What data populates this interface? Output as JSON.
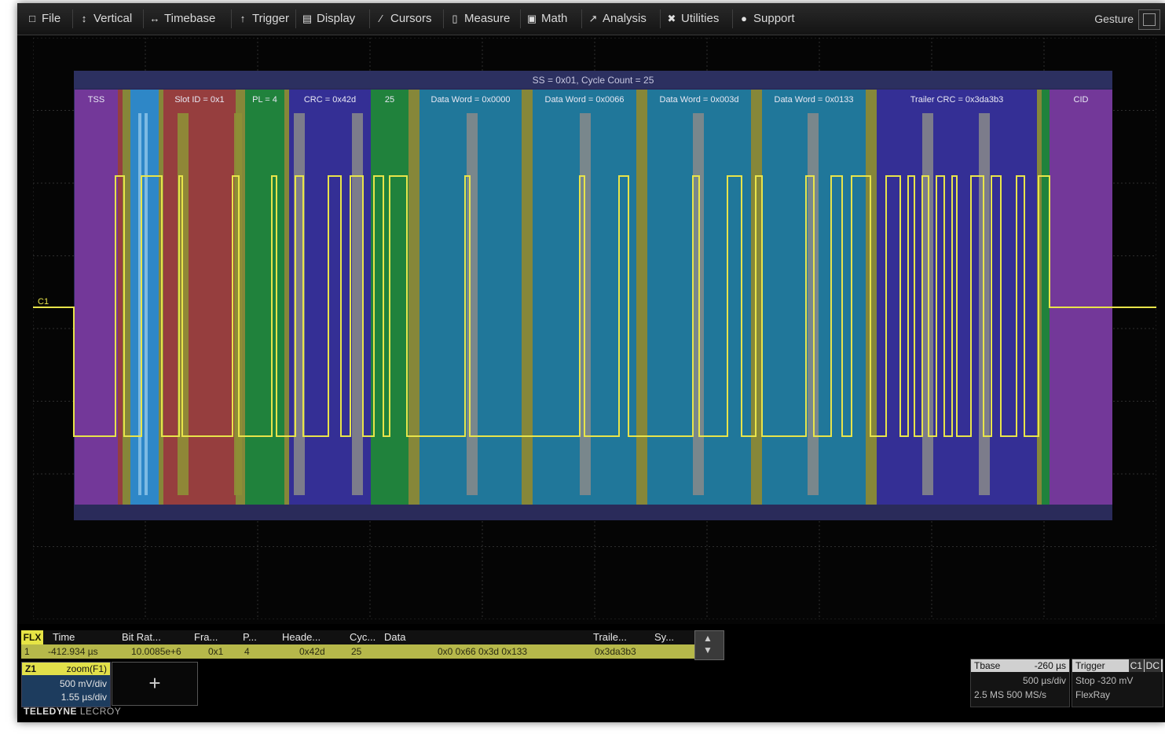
{
  "menu": [
    {
      "label": "File",
      "icon": "file-icon"
    },
    {
      "label": "Vertical",
      "icon": "vertical-icon"
    },
    {
      "label": "Timebase",
      "icon": "timebase-icon"
    },
    {
      "label": "Trigger",
      "icon": "trigger-icon"
    },
    {
      "label": "Display",
      "icon": "display-icon"
    },
    {
      "label": "Cursors",
      "icon": "cursors-icon"
    },
    {
      "label": "Measure",
      "icon": "measure-icon"
    },
    {
      "label": "Math",
      "icon": "math-icon"
    },
    {
      "label": "Analysis",
      "icon": "analysis-icon"
    },
    {
      "label": "Utilities",
      "icon": "utilities-icon"
    },
    {
      "label": "Support",
      "icon": "support-icon"
    }
  ],
  "gesture_label": "Gesture",
  "colors": {
    "trace": "#e8e44a",
    "overlay": "#2a2b5a",
    "purple": "#7a3a9e",
    "blue": "#2f8fd0",
    "red": "#a0403c",
    "green": "#1f8a3a",
    "indigo": "#35309a",
    "teal": "#1f7ea0",
    "olive": "#8e8f36",
    "gray": "#8a8a8a"
  },
  "decode": {
    "header": "SS = 0x01, Cycle Count = 25",
    "fields": [
      {
        "label": "TSS",
        "color": "purple"
      },
      {
        "label": "Slot ID = 0x1",
        "color": "red"
      },
      {
        "label": "PL = 4",
        "color": "green"
      },
      {
        "label": "CRC = 0x42d",
        "color": "indigo"
      },
      {
        "label": "25",
        "color": "green"
      },
      {
        "label": "Data Word = 0x0000",
        "color": "teal"
      },
      {
        "label": "Data Word = 0x0066",
        "color": "teal"
      },
      {
        "label": "Data Word = 0x003d",
        "color": "teal"
      },
      {
        "label": "Data Word = 0x0133",
        "color": "teal"
      },
      {
        "label": "Trailer CRC = 0x3da3b3",
        "color": "indigo"
      },
      {
        "label": "CID",
        "color": "purple"
      }
    ],
    "channel_label": "C1"
  },
  "table": {
    "tag": "FLX",
    "headers": [
      "Time",
      "Bit Rat...",
      "Fra...",
      "P...",
      "Heade...",
      "Cyc...",
      "Data",
      "Traile...",
      "Sy..."
    ],
    "row": {
      "index": "1",
      "time": "-412.934 µs",
      "bitrate": "10.0085e+6",
      "frame": "0x1",
      "pl": "4",
      "header": "0x42d",
      "cycle": "25",
      "data": "0x0 0x66 0x3d 0x133",
      "trailer": "0x3da3b3"
    }
  },
  "zoom": {
    "name": "Z1",
    "label": "zoom(F1)",
    "line1": "500 mV/div",
    "line2": "1.55 µs/div"
  },
  "add_label": "+",
  "timebase": {
    "title": "Tbase",
    "value": "-260 µs",
    "line1": "500 µs/div",
    "line2": "2.5 MS  500 MS/s"
  },
  "trigger": {
    "title": "Trigger",
    "badge1": "C1",
    "badge2": "DC",
    "line1": "Stop   -320 mV",
    "line2": "FlexRay"
  },
  "logo": {
    "brand": "TELEDYNE",
    "sub": "LECROY"
  }
}
